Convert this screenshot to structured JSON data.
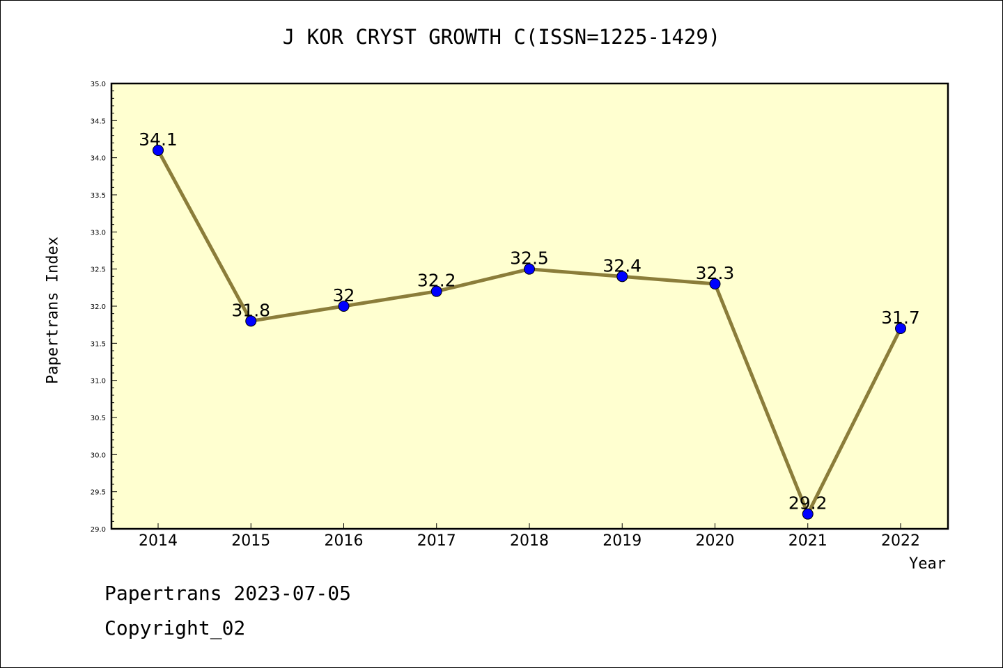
{
  "chart_data": {
    "type": "line",
    "title": "J KOR CRYST GROWTH C(ISSN=1225-1429)",
    "xlabel": "Year",
    "ylabel": "Papertrans Index",
    "categories": [
      "2014",
      "2015",
      "2016",
      "2017",
      "2018",
      "2019",
      "2020",
      "2021",
      "2022"
    ],
    "series": [
      {
        "values": [
          34.1,
          31.8,
          32.0,
          32.2,
          32.5,
          32.4,
          32.3,
          29.2,
          31.7
        ],
        "labels": [
          "34.1",
          "31.8",
          "32",
          "32.2",
          "32.5",
          "32.4",
          "32.3",
          "29.2",
          "31.7"
        ]
      }
    ],
    "ylim": [
      29.0,
      35.0
    ],
    "yticks": [
      "29.0",
      "29.5",
      "30.0",
      "30.5",
      "31.0",
      "31.5",
      "32.0",
      "32.5",
      "33.0",
      "33.5",
      "34.0",
      "34.5",
      "35.0"
    ],
    "grid": false,
    "colors": {
      "plot_background": "#ffffd0",
      "line": "#8b7d3a",
      "marker": "#0000ff"
    }
  },
  "footer": {
    "line1": "Papertrans 2023-07-05",
    "line2": "Copyright_02"
  }
}
